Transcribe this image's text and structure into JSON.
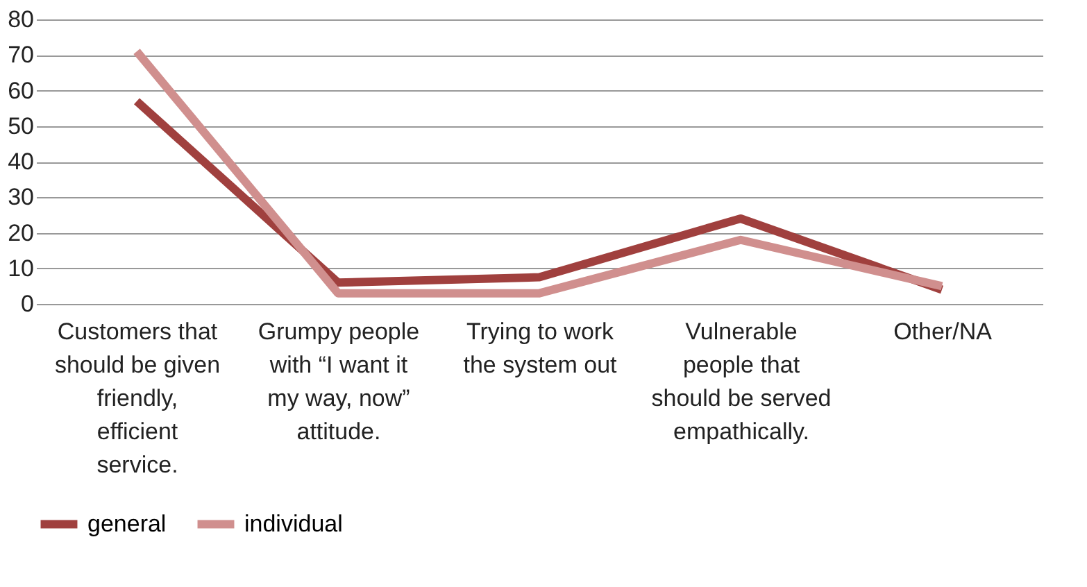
{
  "chart_data": {
    "type": "line",
    "categories": [
      "Customers that should be given friendly, efficient service.",
      "Grumpy people with “I want it my way, now” attitude.",
      "Trying to work the system out",
      "Vulnerable people that should be served empathically.",
      "Other/NA"
    ],
    "series": [
      {
        "name": "general",
        "color": "#a0403e",
        "values": [
          57,
          6,
          7.5,
          24,
          4
        ]
      },
      {
        "name": "individual",
        "color": "#d08f8e",
        "values": [
          71,
          3,
          3,
          18,
          5
        ]
      }
    ],
    "ylim": [
      0,
      80
    ],
    "yticks": [
      0,
      10,
      20,
      30,
      40,
      50,
      60,
      70,
      80
    ],
    "grid": "y",
    "legend": "bottom",
    "marker": "none",
    "line_style": "solid"
  }
}
